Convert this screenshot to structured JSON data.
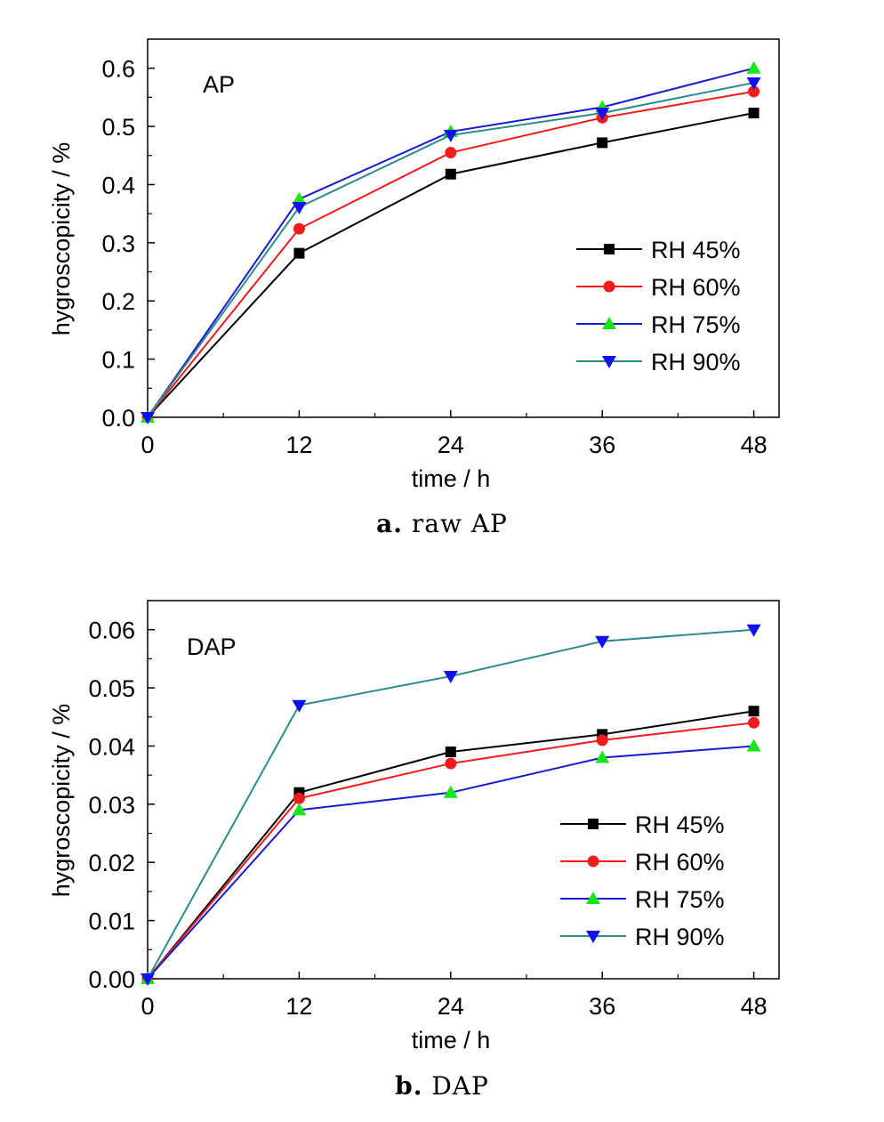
{
  "chart_data": [
    {
      "type": "line",
      "panel_label": "AP",
      "caption_letter": "a.",
      "caption_text": "raw AP",
      "xlabel": "time / h",
      "ylabel": "hygroscopicity / %",
      "x": [
        0,
        12,
        24,
        36,
        48
      ],
      "xticks": [
        "0",
        "12",
        "24",
        "36",
        "48"
      ],
      "xlim": [
        0,
        50
      ],
      "ylim": [
        0,
        0.65
      ],
      "yticks": [
        "0.0",
        "0.1",
        "0.2",
        "0.3",
        "0.4",
        "0.5",
        "0.6"
      ],
      "ytick_values": [
        0,
        0.1,
        0.2,
        0.3,
        0.4,
        0.5,
        0.6
      ],
      "legend_position": "lower-right",
      "grid": false,
      "series": [
        {
          "name": "RH 45%",
          "marker": "square",
          "line_color": "#000000",
          "marker_color": "#000000",
          "values": [
            0,
            0.282,
            0.418,
            0.472,
            0.523
          ]
        },
        {
          "name": "RH 60%",
          "marker": "circle",
          "line_color": "#ee1c1c",
          "marker_color": "#ee1c1c",
          "values": [
            0,
            0.324,
            0.455,
            0.515,
            0.56
          ]
        },
        {
          "name": "RH 75%",
          "marker": "triangle-up",
          "line_color": "#1a1acd",
          "marker_color": "#19e619",
          "values": [
            0,
            0.375,
            0.491,
            0.533,
            0.6
          ]
        },
        {
          "name": "RH 90%",
          "marker": "triangle-down",
          "line_color": "#2e8b8b",
          "marker_color": "#1010ee",
          "values": [
            0,
            0.361,
            0.485,
            0.523,
            0.575
          ]
        }
      ]
    },
    {
      "type": "line",
      "panel_label": "DAP",
      "caption_letter": "b.",
      "caption_text": "DAP",
      "xlabel": "time / h",
      "ylabel": "hygroscopicity / %",
      "x": [
        0,
        12,
        24,
        36,
        48
      ],
      "xticks": [
        "0",
        "12",
        "24",
        "36",
        "48"
      ],
      "xlim": [
        0,
        50
      ],
      "ylim": [
        0,
        0.065
      ],
      "yticks": [
        "0.00",
        "0.01",
        "0.02",
        "0.03",
        "0.04",
        "0.05",
        "0.06"
      ],
      "ytick_values": [
        0,
        0.01,
        0.02,
        0.03,
        0.04,
        0.05,
        0.06
      ],
      "legend_position": "lower-right",
      "grid": false,
      "series": [
        {
          "name": "RH 45%",
          "marker": "square",
          "line_color": "#000000",
          "marker_color": "#000000",
          "values": [
            0,
            0.032,
            0.039,
            0.042,
            0.046
          ]
        },
        {
          "name": "RH 60%",
          "marker": "circle",
          "line_color": "#ee1c1c",
          "marker_color": "#ee1c1c",
          "values": [
            0,
            0.031,
            0.037,
            0.041,
            0.044
          ]
        },
        {
          "name": "RH 75%",
          "marker": "triangle-up",
          "line_color": "#1a1acd",
          "marker_color": "#19e619",
          "values": [
            0,
            0.029,
            0.032,
            0.038,
            0.04
          ]
        },
        {
          "name": "RH 90%",
          "marker": "triangle-down",
          "line_color": "#2e8b8b",
          "marker_color": "#1010ee",
          "values": [
            0,
            0.047,
            0.052,
            0.058,
            0.06
          ]
        }
      ]
    }
  ]
}
